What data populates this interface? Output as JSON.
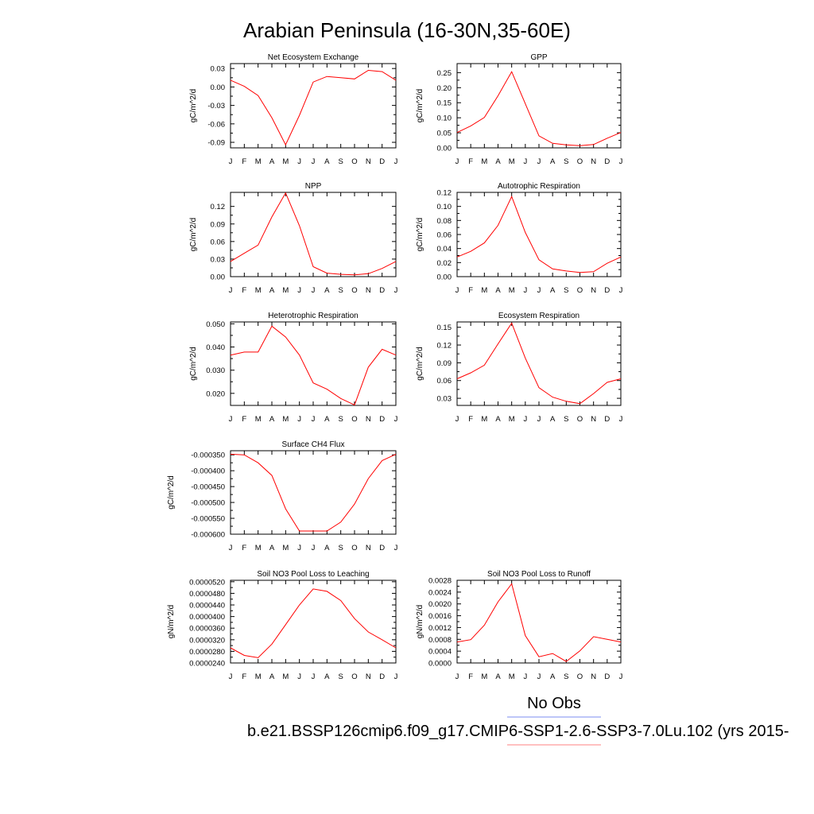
{
  "figure": {
    "title": "Arabian Peninsula (16-30N,35-60E)"
  },
  "legend": {
    "entries": [
      {
        "label": "No Obs",
        "color": "#7b8cf0"
      },
      {
        "label": "b.e21.BSSP126cmip6.f09_g17.CMIP6-SSP1-2.6-SSP3-7.0Lu.102 (yrs 2015-",
        "color": "#ff8080"
      }
    ]
  },
  "chart_data": [
    {
      "type": "line",
      "title": "Net Ecosystem Exchange",
      "ylabel": "gC/m^2/d",
      "x": [
        "J",
        "F",
        "M",
        "A",
        "M",
        "J",
        "J",
        "A",
        "S",
        "O",
        "N",
        "D",
        "J"
      ],
      "series": [
        {
          "color": "#ff0000",
          "values": [
            0.011,
            0.001,
            -0.014,
            -0.05,
            -0.094,
            -0.046,
            0.008,
            0.017,
            0.015,
            0.013,
            0.027,
            0.025,
            0.011
          ]
        }
      ],
      "ylim": [
        -0.099,
        0.038
      ],
      "yticks": [
        0.03,
        0.0,
        -0.03,
        -0.06,
        -0.09
      ],
      "ytick_labels": [
        "0.03",
        "0.00",
        "-0.03",
        "-0.06",
        "-0.09"
      ]
    },
    {
      "type": "line",
      "title": "GPP",
      "ylabel": "gC/m^2/d",
      "x": [
        "J",
        "F",
        "M",
        "A",
        "M",
        "J",
        "J",
        "A",
        "S",
        "O",
        "N",
        "D",
        "J"
      ],
      "series": [
        {
          "color": "#ff0000",
          "values": [
            0.051,
            0.073,
            0.101,
            0.173,
            0.253,
            0.147,
            0.04,
            0.015,
            0.01,
            0.007,
            0.011,
            0.032,
            0.051
          ]
        }
      ],
      "ylim": [
        0.0,
        0.28
      ],
      "yticks": [
        0.0,
        0.05,
        0.1,
        0.15,
        0.2,
        0.25
      ],
      "ytick_labels": [
        "0.00",
        "0.05",
        "0.10",
        "0.15",
        "0.20",
        "0.25"
      ]
    },
    {
      "type": "line",
      "title": "NPP",
      "ylabel": "gC/m^2/d",
      "x": [
        "J",
        "F",
        "M",
        "A",
        "M",
        "J",
        "J",
        "A",
        "S",
        "O",
        "N",
        "D",
        "J"
      ],
      "series": [
        {
          "color": "#ff0000",
          "values": [
            0.026,
            0.04,
            0.054,
            0.102,
            0.143,
            0.087,
            0.017,
            0.006,
            0.004,
            0.003,
            0.005,
            0.014,
            0.026
          ]
        }
      ],
      "ylim": [
        0.0,
        0.144
      ],
      "yticks": [
        0.0,
        0.03,
        0.06,
        0.09,
        0.12
      ],
      "ytick_labels": [
        "0.00",
        "0.03",
        "0.06",
        "0.09",
        "0.12"
      ]
    },
    {
      "type": "line",
      "title": "Autotrophic Respiration",
      "ylabel": "gC/m^2/d",
      "x": [
        "J",
        "F",
        "M",
        "A",
        "M",
        "J",
        "J",
        "A",
        "S",
        "O",
        "N",
        "D",
        "J"
      ],
      "series": [
        {
          "color": "#ff0000",
          "values": [
            0.028,
            0.036,
            0.048,
            0.073,
            0.114,
            0.063,
            0.024,
            0.011,
            0.008,
            0.006,
            0.007,
            0.019,
            0.028
          ]
        }
      ],
      "ylim": [
        0.0,
        0.12
      ],
      "yticks": [
        0.0,
        0.02,
        0.04,
        0.06,
        0.08,
        0.1,
        0.12
      ],
      "ytick_labels": [
        "0.00",
        "0.02",
        "0.04",
        "0.06",
        "0.08",
        "0.10",
        "0.12"
      ]
    },
    {
      "type": "line",
      "title": "Heterotrophic Respiration",
      "ylabel": "gC/m^2/d",
      "x": [
        "J",
        "F",
        "M",
        "A",
        "M",
        "J",
        "J",
        "A",
        "S",
        "O",
        "N",
        "D",
        "J"
      ],
      "series": [
        {
          "color": "#ff0000",
          "values": [
            0.0365,
            0.0378,
            0.0378,
            0.049,
            0.0443,
            0.0365,
            0.0245,
            0.0218,
            0.0178,
            0.015,
            0.0313,
            0.039,
            0.0365
          ]
        }
      ],
      "ylim": [
        0.0148,
        0.0508
      ],
      "yticks": [
        0.02,
        0.03,
        0.04,
        0.05
      ],
      "ytick_labels": [
        "0.020",
        "0.030",
        "0.040",
        "0.050"
      ]
    },
    {
      "type": "line",
      "title": "Ecosystem Respiration",
      "ylabel": "gC/m^2/d",
      "x": [
        "J",
        "F",
        "M",
        "A",
        "M",
        "J",
        "J",
        "A",
        "S",
        "O",
        "N",
        "D",
        "J"
      ],
      "series": [
        {
          "color": "#ff0000",
          "values": [
            0.063,
            0.073,
            0.086,
            0.122,
            0.157,
            0.098,
            0.048,
            0.032,
            0.025,
            0.021,
            0.038,
            0.057,
            0.063
          ]
        }
      ],
      "ylim": [
        0.018,
        0.159
      ],
      "yticks": [
        0.03,
        0.06,
        0.09,
        0.12,
        0.15
      ],
      "ytick_labels": [
        "0.03",
        "0.06",
        "0.09",
        "0.12",
        "0.15"
      ]
    },
    {
      "type": "line",
      "title": "Surface CH4 Flux",
      "ylabel": "gC/m^2/d",
      "x": [
        "J",
        "F",
        "M",
        "A",
        "M",
        "J",
        "J",
        "A",
        "S",
        "O",
        "N",
        "D",
        "J"
      ],
      "series": [
        {
          "color": "#ff0000",
          "values": [
            -0.000348,
            -0.00035,
            -0.000375,
            -0.000415,
            -0.00052,
            -0.00059,
            -0.00059,
            -0.00059,
            -0.000562,
            -0.000505,
            -0.000425,
            -0.000368,
            -0.000348
          ]
        }
      ],
      "ylim": [
        -0.0006,
        -0.000337
      ],
      "yticks": [
        -0.00035,
        -0.0004,
        -0.00045,
        -0.0005,
        -0.00055,
        -0.0006
      ],
      "ytick_labels": [
        "-0.000350",
        "-0.000400",
        "-0.000450",
        "-0.000500",
        "-0.000550",
        "-0.000600"
      ]
    },
    {
      "type": "line",
      "title": "Soil NO3 Pool Loss to Leaching",
      "ylabel": "gN/m^2/d",
      "x": [
        "J",
        "F",
        "M",
        "A",
        "M",
        "J",
        "J",
        "A",
        "S",
        "O",
        "N",
        "D",
        "J"
      ],
      "series": [
        {
          "color": "#ff0000",
          "values": [
            2.92e-05,
            2.66e-05,
            2.58e-05,
            3.05e-05,
            3.72e-05,
            4.4e-05,
            4.95e-05,
            4.87e-05,
            4.55e-05,
            3.93e-05,
            3.47e-05,
            3.2e-05,
            2.92e-05
          ]
        }
      ],
      "ylim": [
        2.4e-05,
        5.25e-05
      ],
      "yticks": [
        2.4e-05,
        2.8e-05,
        3.2e-05,
        3.6e-05,
        4e-05,
        4.4e-05,
        4.8e-05,
        5.2e-05
      ],
      "ytick_labels": [
        "0.0000240",
        "0.0000280",
        "0.0000320",
        "0.0000360",
        "0.0000400",
        "0.0000440",
        "0.0000480",
        "0.0000520"
      ]
    },
    {
      "type": "line",
      "title": "Soil NO3 Pool Loss to Runoff",
      "ylabel": "gN/m^2/d",
      "x": [
        "J",
        "F",
        "M",
        "A",
        "M",
        "J",
        "J",
        "A",
        "S",
        "O",
        "N",
        "D",
        "J"
      ],
      "series": [
        {
          "color": "#ff0000",
          "values": [
            0.00071,
            0.00079,
            0.00128,
            0.00207,
            0.00268,
            0.00093,
            0.00021,
            0.00032,
            5e-05,
            0.00041,
            0.00089,
            0.0008,
            0.00071
          ]
        }
      ],
      "ylim": [
        0.0,
        0.0028
      ],
      "yticks": [
        0.0,
        0.0004,
        0.0008,
        0.0012,
        0.0016,
        0.002,
        0.0024,
        0.0028
      ],
      "ytick_labels": [
        "0.0000",
        "0.0004",
        "0.0008",
        "0.0012",
        "0.0016",
        "0.0020",
        "0.0024",
        "0.0028"
      ]
    }
  ]
}
